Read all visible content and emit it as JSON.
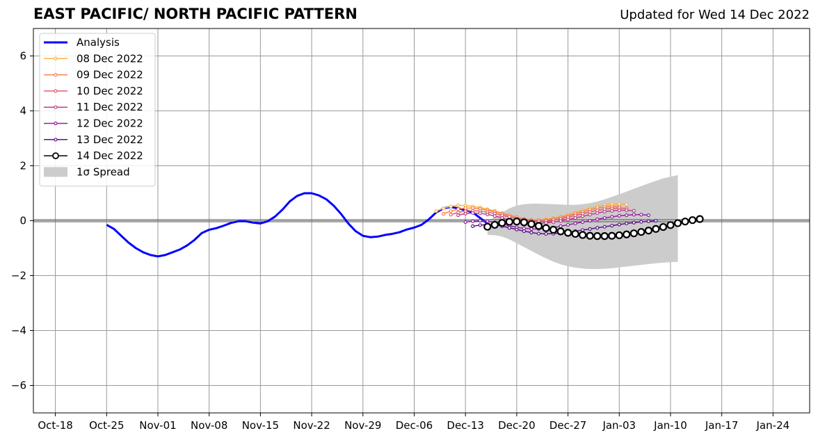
{
  "title": "EAST PACIFIC/ NORTH PACIFIC PATTERN",
  "subtitle": "Updated for Wed 14 Dec 2022",
  "colors": {
    "analysis": "#0000ff",
    "spread": "#cccccc",
    "grid": "#999999",
    "zero_line": "#555555"
  },
  "chart_data": {
    "type": "line",
    "xaxis": {
      "ticks": [
        "Oct-18",
        "Oct-25",
        "Nov-01",
        "Nov-08",
        "Nov-15",
        "Nov-22",
        "Nov-29",
        "Dec-06",
        "Dec-13",
        "Dec-20",
        "Dec-27",
        "Jan-03",
        "Jan-10",
        "Jan-17",
        "Jan-24"
      ],
      "range": [
        "2022-10-15",
        "2023-01-29"
      ]
    },
    "yaxis": {
      "ticks": [
        "6",
        "4",
        "2",
        "0",
        "−2",
        "−4",
        "−6"
      ],
      "range": [
        -7,
        7
      ]
    },
    "grid": true,
    "legend_position": "top-left",
    "series": [
      {
        "name": "Analysis",
        "color": "#0000ff",
        "style": "analysis",
        "start": "2022-10-25",
        "values": [
          -0.15,
          -0.3,
          -0.55,
          -0.8,
          -1.0,
          -1.15,
          -1.25,
          -1.3,
          -1.25,
          -1.15,
          -1.05,
          -0.9,
          -0.7,
          -0.45,
          -0.33,
          -0.27,
          -0.18,
          -0.08,
          -0.02,
          -0.02,
          -0.07,
          -0.1,
          -0.02,
          0.15,
          0.4,
          0.7,
          0.9,
          1.0,
          1.0,
          0.92,
          0.78,
          0.55,
          0.25,
          -0.1,
          -0.38,
          -0.55,
          -0.6,
          -0.58,
          -0.52,
          -0.48,
          -0.42,
          -0.32,
          -0.25,
          -0.15,
          0.05,
          0.3,
          0.45,
          0.5,
          0.45,
          0.38,
          0.3,
          0.1,
          -0.1
        ]
      },
      {
        "name": "08 Dec 2022",
        "color": "#fdb338",
        "style": "forecast",
        "start": "2022-12-09",
        "values": [
          0.35,
          0.45,
          0.52,
          0.56,
          0.55,
          0.52,
          0.48,
          0.42,
          0.36,
          0.28,
          0.2,
          0.12,
          0.06,
          0.03,
          0.03,
          0.06,
          0.1,
          0.15,
          0.22,
          0.3,
          0.38,
          0.45,
          0.52,
          0.57,
          0.6,
          0.6,
          0.59
        ]
      },
      {
        "name": "09 Dec 2022",
        "color": "#f3824f",
        "style": "forecast",
        "start": "2022-12-10",
        "values": [
          0.25,
          0.35,
          0.42,
          0.46,
          0.46,
          0.43,
          0.38,
          0.32,
          0.26,
          0.2,
          0.13,
          0.07,
          0.03,
          0.02,
          0.03,
          0.07,
          0.12,
          0.18,
          0.26,
          0.33,
          0.4,
          0.46,
          0.5,
          0.52,
          0.52
        ]
      },
      {
        "name": "10 Dec 2022",
        "color": "#e05c6e",
        "style": "forecast",
        "start": "2022-12-11",
        "values": [
          0.22,
          0.3,
          0.35,
          0.36,
          0.35,
          0.31,
          0.26,
          0.2,
          0.14,
          0.08,
          0.03,
          0.0,
          -0.02,
          -0.01,
          0.02,
          0.07,
          0.13,
          0.19,
          0.26,
          0.32,
          0.38,
          0.42,
          0.45,
          0.46,
          0.45
        ]
      },
      {
        "name": "11 Dec 2022",
        "color": "#bc3e88",
        "style": "forecast",
        "start": "2022-12-12",
        "values": [
          0.2,
          0.26,
          0.28,
          0.27,
          0.23,
          0.17,
          0.1,
          0.03,
          -0.03,
          -0.08,
          -0.1,
          -0.1,
          -0.08,
          -0.05,
          -0.01,
          0.04,
          0.1,
          0.16,
          0.22,
          0.28,
          0.33,
          0.36,
          0.38,
          0.38,
          0.36
        ]
      },
      {
        "name": "12 Dec 2022",
        "color": "#8f20a0",
        "style": "forecast",
        "start": "2022-12-13",
        "values": [
          -0.05,
          -0.02,
          0.0,
          -0.02,
          -0.06,
          -0.12,
          -0.18,
          -0.24,
          -0.28,
          -0.3,
          -0.3,
          -0.28,
          -0.25,
          -0.2,
          -0.15,
          -0.1,
          -0.05,
          0.0,
          0.05,
          0.1,
          0.14,
          0.18,
          0.2,
          0.22,
          0.22,
          0.2
        ]
      },
      {
        "name": "13 Dec 2022",
        "color": "#5a0f87",
        "style": "forecast",
        "start": "2022-12-14",
        "values": [
          -0.2,
          -0.16,
          -0.14,
          -0.15,
          -0.2,
          -0.26,
          -0.32,
          -0.38,
          -0.43,
          -0.47,
          -0.48,
          -0.47,
          -0.45,
          -0.42,
          -0.38,
          -0.34,
          -0.3,
          -0.26,
          -0.22,
          -0.18,
          -0.14,
          -0.1,
          -0.07,
          -0.04,
          -0.02,
          0.0
        ]
      },
      {
        "name": "14 Dec 2022",
        "color": "#000000",
        "style": "current",
        "start": "2022-12-16",
        "values": [
          -0.22,
          -0.15,
          -0.08,
          -0.04,
          -0.03,
          -0.06,
          -0.12,
          -0.19,
          -0.27,
          -0.33,
          -0.39,
          -0.44,
          -0.48,
          -0.52,
          -0.55,
          -0.56,
          -0.56,
          -0.55,
          -0.53,
          -0.5,
          -0.46,
          -0.41,
          -0.36,
          -0.3,
          -0.23,
          -0.16,
          -0.09,
          -0.03,
          0.02,
          0.06
        ]
      },
      {
        "name": "1σ Spread",
        "color": "#cccccc",
        "style": "band",
        "start": "2022-12-16",
        "upper": [
          0.0,
          0.12,
          0.3,
          0.45,
          0.55,
          0.6,
          0.62,
          0.62,
          0.61,
          0.6,
          0.59,
          0.58,
          0.58,
          0.6,
          0.64,
          0.7,
          0.78,
          0.87,
          0.96,
          1.06,
          1.16,
          1.26,
          1.36,
          1.45,
          1.54,
          1.6,
          1.66
        ],
        "lower": [
          -0.52,
          -0.53,
          -0.58,
          -0.68,
          -0.82,
          -0.96,
          -1.1,
          -1.24,
          -1.37,
          -1.49,
          -1.59,
          -1.66,
          -1.71,
          -1.74,
          -1.76,
          -1.76,
          -1.75,
          -1.73,
          -1.7,
          -1.67,
          -1.64,
          -1.61,
          -1.58,
          -1.55,
          -1.53,
          -1.51,
          -1.5
        ]
      }
    ]
  }
}
